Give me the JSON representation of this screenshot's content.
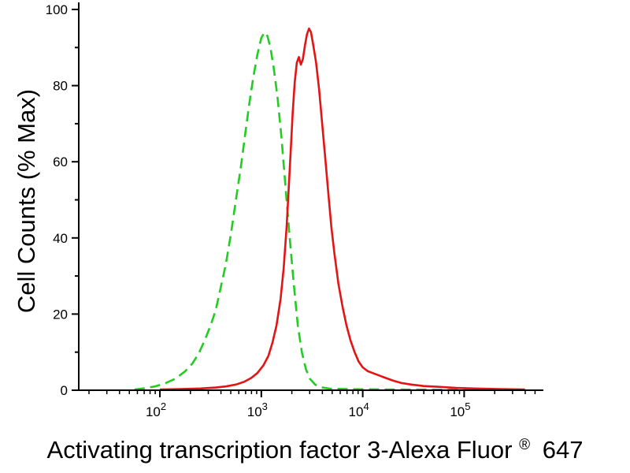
{
  "chart_data": {
    "type": "line",
    "title": "",
    "ylabel": "Cell Counts (% Max)",
    "xlabel": "Activating transcription factor 3-Alexa Fluor® 647",
    "xlabel_parts": {
      "pre": "Activating transcription factor 3-Alexa Fluor",
      "sup": "®",
      "post": "647"
    },
    "x_scale": "log10",
    "x_range_log10": [
      1.2,
      5.75
    ],
    "x_major_ticks_log10": [
      2,
      3,
      4,
      5
    ],
    "x_tick_label_base": "10",
    "ylim": [
      0,
      100
    ],
    "y_ticks": [
      0,
      20,
      40,
      60,
      80,
      100
    ],
    "y_minor_step": 10,
    "grid": false,
    "legend": "none",
    "background": "#ffffff",
    "axis_color": "#000000",
    "series": [
      {
        "name": "green-dashed-curve",
        "style": "dashed",
        "color": "#22cc22",
        "points": [
          [
            1.75,
            0.2
          ],
          [
            1.85,
            0.5
          ],
          [
            1.95,
            1
          ],
          [
            2.05,
            1.8
          ],
          [
            2.15,
            3
          ],
          [
            2.25,
            5
          ],
          [
            2.32,
            7
          ],
          [
            2.38,
            9.5
          ],
          [
            2.44,
            13
          ],
          [
            2.5,
            17
          ],
          [
            2.55,
            21
          ],
          [
            2.6,
            27
          ],
          [
            2.65,
            33
          ],
          [
            2.7,
            41
          ],
          [
            2.75,
            50
          ],
          [
            2.8,
            59
          ],
          [
            2.84,
            67
          ],
          [
            2.88,
            75
          ],
          [
            2.92,
            82
          ],
          [
            2.96,
            88
          ],
          [
            3.0,
            92.5
          ],
          [
            3.03,
            94
          ],
          [
            3.06,
            93
          ],
          [
            3.09,
            90
          ],
          [
            3.12,
            85
          ],
          [
            3.16,
            77
          ],
          [
            3.2,
            66
          ],
          [
            3.24,
            53
          ],
          [
            3.28,
            40
          ],
          [
            3.32,
            28
          ],
          [
            3.36,
            17
          ],
          [
            3.4,
            10
          ],
          [
            3.44,
            5.5
          ],
          [
            3.48,
            3
          ],
          [
            3.53,
            1.5
          ],
          [
            3.58,
            0.8
          ],
          [
            3.68,
            0.4
          ],
          [
            3.85,
            0.3
          ],
          [
            4.2,
            0.2
          ],
          [
            4.8,
            0.15
          ],
          [
            5.6,
            0.1
          ]
        ]
      },
      {
        "name": "red-solid-curve",
        "style": "solid",
        "color": "#e51414",
        "points": [
          [
            2.0,
            0.2
          ],
          [
            2.2,
            0.3
          ],
          [
            2.4,
            0.45
          ],
          [
            2.55,
            0.7
          ],
          [
            2.65,
            1
          ],
          [
            2.75,
            1.5
          ],
          [
            2.83,
            2.2
          ],
          [
            2.9,
            3.2
          ],
          [
            2.96,
            4.5
          ],
          [
            3.02,
            6.5
          ],
          [
            3.07,
            9
          ],
          [
            3.11,
            12.5
          ],
          [
            3.15,
            17
          ],
          [
            3.19,
            24
          ],
          [
            3.22,
            32
          ],
          [
            3.25,
            43
          ],
          [
            3.27,
            53
          ],
          [
            3.29,
            63
          ],
          [
            3.31,
            73
          ],
          [
            3.33,
            81
          ],
          [
            3.35,
            86
          ],
          [
            3.37,
            87.5
          ],
          [
            3.39,
            85.5
          ],
          [
            3.41,
            87
          ],
          [
            3.43,
            90.5
          ],
          [
            3.45,
            93.5
          ],
          [
            3.47,
            95
          ],
          [
            3.49,
            94
          ],
          [
            3.51,
            91
          ],
          [
            3.54,
            86
          ],
          [
            3.57,
            79
          ],
          [
            3.6,
            70
          ],
          [
            3.63,
            61
          ],
          [
            3.66,
            52
          ],
          [
            3.69,
            43
          ],
          [
            3.72,
            36
          ],
          [
            3.76,
            28
          ],
          [
            3.8,
            22
          ],
          [
            3.84,
            17
          ],
          [
            3.88,
            13
          ],
          [
            3.92,
            10
          ],
          [
            3.96,
            7.5
          ],
          [
            4.0,
            6
          ],
          [
            4.05,
            5
          ],
          [
            4.1,
            4.5
          ],
          [
            4.15,
            4
          ],
          [
            4.22,
            3.3
          ],
          [
            4.3,
            2.5
          ],
          [
            4.38,
            1.9
          ],
          [
            4.48,
            1.5
          ],
          [
            4.6,
            1.1
          ],
          [
            4.75,
            0.9
          ],
          [
            4.92,
            0.6
          ],
          [
            5.1,
            0.45
          ],
          [
            5.35,
            0.3
          ],
          [
            5.6,
            0.2
          ]
        ]
      }
    ]
  }
}
